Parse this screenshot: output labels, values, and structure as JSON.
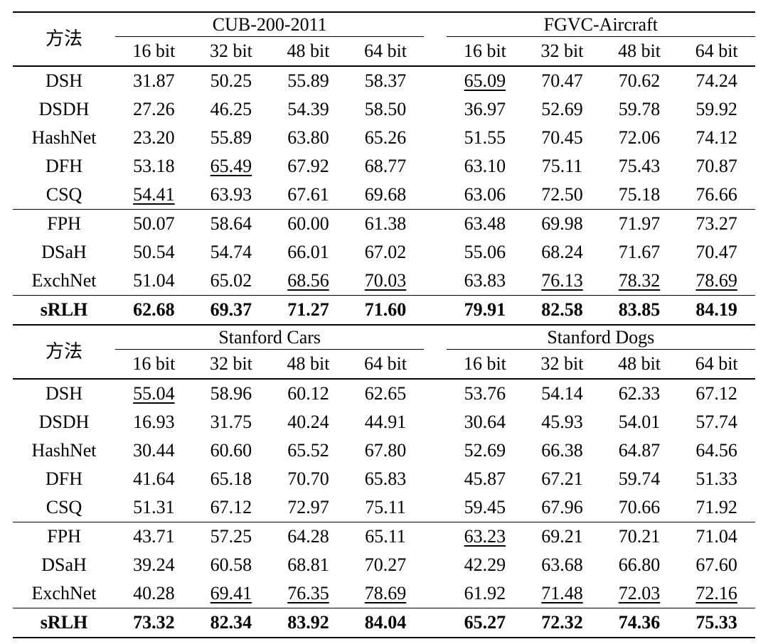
{
  "tables": [
    {
      "method_header": "方法",
      "groups": [
        {
          "name": "CUB-200-2011",
          "bits": [
            "16 bit",
            "32 bit",
            "48 bit",
            "64 bit"
          ]
        },
        {
          "name": "FGVC-Aircraft",
          "bits": [
            "16 bit",
            "32 bit",
            "48 bit",
            "64 bit"
          ]
        }
      ],
      "sections": [
        {
          "rows": [
            {
              "method": "DSH",
              "values": [
                "31.87",
                "50.25",
                "55.89",
                "58.37",
                "65.09",
                "70.47",
                "70.62",
                "74.24"
              ],
              "underline": [
                4
              ],
              "bold": false
            },
            {
              "method": "DSDH",
              "values": [
                "27.26",
                "46.25",
                "54.39",
                "58.50",
                "36.97",
                "52.69",
                "59.78",
                "59.92"
              ],
              "underline": [],
              "bold": false
            },
            {
              "method": "HashNet",
              "values": [
                "23.20",
                "55.89",
                "63.80",
                "65.26",
                "51.55",
                "70.45",
                "72.06",
                "74.12"
              ],
              "underline": [],
              "bold": false
            },
            {
              "method": "DFH",
              "values": [
                "53.18",
                "65.49",
                "67.92",
                "68.77",
                "63.10",
                "75.11",
                "75.43",
                "70.87"
              ],
              "underline": [
                1
              ],
              "bold": false
            },
            {
              "method": "CSQ",
              "values": [
                "54.41",
                "63.93",
                "67.61",
                "69.68",
                "63.06",
                "72.50",
                "75.18",
                "76.66"
              ],
              "underline": [
                0
              ],
              "bold": false
            }
          ]
        },
        {
          "rows": [
            {
              "method": "FPH",
              "values": [
                "50.07",
                "58.64",
                "60.00",
                "61.38",
                "63.48",
                "69.98",
                "71.97",
                "73.27"
              ],
              "underline": [],
              "bold": false
            },
            {
              "method": "DSaH",
              "values": [
                "50.54",
                "54.74",
                "66.01",
                "67.02",
                "55.06",
                "68.24",
                "71.67",
                "70.47"
              ],
              "underline": [],
              "bold": false
            },
            {
              "method": "ExchNet",
              "values": [
                "51.04",
                "65.02",
                "68.56",
                "70.03",
                "63.83",
                "76.13",
                "78.32",
                "78.69"
              ],
              "underline": [
                2,
                3,
                5,
                6,
                7
              ],
              "bold": false
            }
          ]
        },
        {
          "rows": [
            {
              "method": "sRLH",
              "values": [
                "62.68",
                "69.37",
                "71.27",
                "71.60",
                "79.91",
                "82.58",
                "83.85",
                "84.19"
              ],
              "underline": [],
              "bold": true
            }
          ]
        }
      ]
    },
    {
      "method_header": "方法",
      "groups": [
        {
          "name": "Stanford Cars",
          "bits": [
            "16 bit",
            "32 bit",
            "48 bit",
            "64 bit"
          ]
        },
        {
          "name": "Stanford Dogs",
          "bits": [
            "16 bit",
            "32 bit",
            "48 bit",
            "64 bit"
          ]
        }
      ],
      "sections": [
        {
          "rows": [
            {
              "method": "DSH",
              "values": [
                "55.04",
                "58.96",
                "60.12",
                "62.65",
                "53.76",
                "54.14",
                "62.33",
                "67.12"
              ],
              "underline": [
                0
              ],
              "bold": false
            },
            {
              "method": "DSDH",
              "values": [
                "16.93",
                "31.75",
                "40.24",
                "44.91",
                "30.64",
                "45.93",
                "54.01",
                "57.74"
              ],
              "underline": [],
              "bold": false
            },
            {
              "method": "HashNet",
              "values": [
                "30.44",
                "60.60",
                "65.52",
                "67.80",
                "52.69",
                "66.38",
                "64.87",
                "64.56"
              ],
              "underline": [],
              "bold": false
            },
            {
              "method": "DFH",
              "values": [
                "41.64",
                "65.18",
                "70.70",
                "65.83",
                "45.87",
                "67.21",
                "59.74",
                "51.33"
              ],
              "underline": [],
              "bold": false
            },
            {
              "method": "CSQ",
              "values": [
                "51.31",
                "67.12",
                "72.97",
                "75.11",
                "59.45",
                "67.96",
                "70.66",
                "71.92"
              ],
              "underline": [],
              "bold": false
            }
          ]
        },
        {
          "rows": [
            {
              "method": "FPH",
              "values": [
                "43.71",
                "57.25",
                "64.28",
                "65.11",
                "63.23",
                "69.21",
                "70.21",
                "71.04"
              ],
              "underline": [
                4
              ],
              "bold": false
            },
            {
              "method": "DSaH",
              "values": [
                "39.24",
                "60.58",
                "68.81",
                "70.27",
                "42.29",
                "63.68",
                "66.80",
                "67.60"
              ],
              "underline": [],
              "bold": false
            },
            {
              "method": "ExchNet",
              "values": [
                "40.28",
                "69.41",
                "76.35",
                "78.69",
                "61.92",
                "71.48",
                "72.03",
                "72.16"
              ],
              "underline": [
                1,
                2,
                3,
                5,
                6,
                7
              ],
              "bold": false
            }
          ]
        },
        {
          "rows": [
            {
              "method": "sRLH",
              "values": [
                "73.32",
                "82.34",
                "83.92",
                "84.04",
                "65.27",
                "72.32",
                "74.36",
                "75.33"
              ],
              "underline": [],
              "bold": true
            }
          ]
        }
      ]
    }
  ]
}
